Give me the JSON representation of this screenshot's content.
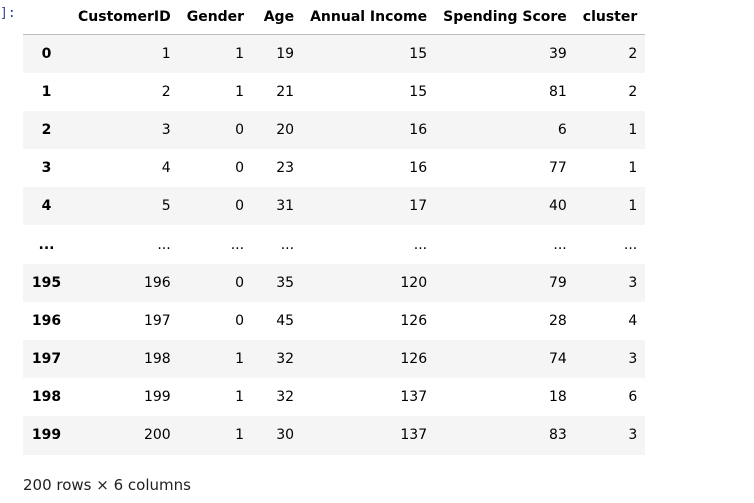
{
  "cell": {
    "prompt": "]:"
  },
  "dataframe": {
    "columns": [
      "CustomerID",
      "Gender",
      "Age",
      "Annual Income",
      "Spending Score",
      "cluster"
    ],
    "rows": [
      {
        "index": "0",
        "values": [
          "1",
          "1",
          "19",
          "15",
          "39",
          "2"
        ]
      },
      {
        "index": "1",
        "values": [
          "2",
          "1",
          "21",
          "15",
          "81",
          "2"
        ]
      },
      {
        "index": "2",
        "values": [
          "3",
          "0",
          "20",
          "16",
          "6",
          "1"
        ]
      },
      {
        "index": "3",
        "values": [
          "4",
          "0",
          "23",
          "16",
          "77",
          "1"
        ]
      },
      {
        "index": "4",
        "values": [
          "5",
          "0",
          "31",
          "17",
          "40",
          "1"
        ]
      },
      {
        "index": "...",
        "values": [
          "...",
          "...",
          "...",
          "...",
          "...",
          "..."
        ]
      },
      {
        "index": "195",
        "values": [
          "196",
          "0",
          "35",
          "120",
          "79",
          "3"
        ]
      },
      {
        "index": "196",
        "values": [
          "197",
          "0",
          "45",
          "126",
          "28",
          "4"
        ]
      },
      {
        "index": "197",
        "values": [
          "198",
          "1",
          "32",
          "126",
          "74",
          "3"
        ]
      },
      {
        "index": "198",
        "values": [
          "199",
          "1",
          "32",
          "137",
          "18",
          "6"
        ]
      },
      {
        "index": "199",
        "values": [
          "200",
          "1",
          "30",
          "137",
          "83",
          "3"
        ]
      }
    ],
    "shape_text": "200 rows × 6 columns"
  }
}
